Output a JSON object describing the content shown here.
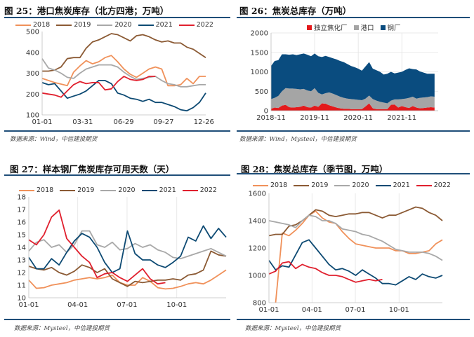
{
  "panels": [
    {
      "title": "图 25：港口焦炭库存（北方四港；万吨）",
      "source": "数据来源：Wind，中信建投期货"
    },
    {
      "title": "图 26：焦炭总库存（万吨）",
      "source": "数据来源：Wind，Mysteel，中信建投期货"
    },
    {
      "title": "图 27：样本钢厂焦炭库存可用天数（天）",
      "source": "数据来源：Mysteel，中信建投期货"
    },
    {
      "title": "图 28：焦炭总库存（季节图，万吨）",
      "source": "数据来源：Mysteel，中信建投期货"
    }
  ],
  "colors": {
    "2018": "#f0915a",
    "2019": "#8b5a34",
    "2020": "#a8a8a8",
    "2021": "#0d4a73",
    "2022": "#e0202e",
    "coking": "#e31a1c",
    "port": "#a5a5a5",
    "steel": "#0a4c7f",
    "rule": "#1f4e79"
  },
  "chart_data": [
    {
      "type": "line",
      "title": "图 25：港口焦炭库存（北方四港；万吨）",
      "xlabel": "",
      "ylabel": "万吨",
      "x": [
        0,
        2,
        4,
        6,
        8,
        10,
        12,
        14,
        16,
        18,
        20,
        22,
        24,
        26,
        28,
        30,
        32,
        34,
        36,
        38,
        40,
        42,
        44,
        46,
        48,
        50,
        52
      ],
      "xlim": [
        0,
        52
      ],
      "ylim": [
        100,
        500
      ],
      "yticks": [
        100,
        200,
        300,
        400,
        500
      ],
      "xticks": [
        {
          "label": "01-01",
          "x": 0
        },
        {
          "label": "03-31",
          "x": 12.9
        },
        {
          "label": "06-29",
          "x": 25.9
        },
        {
          "label": "09-27",
          "x": 38.6
        },
        {
          "label": "12-26",
          "x": 51.4
        }
      ],
      "legend": "top",
      "series": [
        {
          "name": "2018",
          "values": [
            275,
            265,
            255,
            248,
            240,
            305,
            335,
            360,
            345,
            355,
            375,
            385,
            355,
            320,
            295,
            280,
            300,
            320,
            330,
            320,
            240,
            240,
            245,
            275,
            250,
            285,
            285
          ]
        },
        {
          "name": "2019",
          "values": [
            310,
            310,
            315,
            330,
            370,
            375,
            375,
            420,
            450,
            460,
            475,
            490,
            485,
            470,
            455,
            480,
            485,
            475,
            460,
            450,
            455,
            445,
            445,
            425,
            415,
            395,
            375
          ]
        },
        {
          "name": "2020",
          "values": [
            370,
            325,
            315,
            300,
            280,
            275,
            300,
            320,
            330,
            340,
            340,
            340,
            330,
            305,
            285,
            270,
            275,
            280,
            285,
            265,
            250,
            245,
            235,
            235,
            240,
            245,
            245
          ]
        },
        {
          "name": "2021",
          "values": [
            255,
            245,
            250,
            215,
            180,
            190,
            200,
            215,
            240,
            265,
            265,
            250,
            205,
            195,
            180,
            175,
            165,
            175,
            160,
            160,
            150,
            140,
            125,
            120,
            135,
            160,
            205
          ]
        },
        {
          "name": "2022",
          "values": [
            205,
            200,
            195,
            185,
            215,
            245,
            260,
            250,
            255,
            255,
            220,
            225,
            260,
            285,
            270,
            265,
            270,
            285,
            285,
            null,
            null,
            null,
            null,
            null,
            null,
            null,
            null
          ]
        }
      ]
    },
    {
      "type": "area",
      "stacked": true,
      "title": "图 26：焦炭总库存（万吨）",
      "xlabel": "",
      "ylabel": "万吨",
      "xlim": [
        0,
        46
      ],
      "ylim": [
        0,
        2000
      ],
      "yticks": [
        0,
        500,
        1000,
        1500,
        2000
      ],
      "xticks": [
        {
          "label": "2018-11",
          "x": 0
        },
        {
          "label": "2019-11",
          "x": 12
        },
        {
          "label": "2020-11",
          "x": 24
        },
        {
          "label": "2021-11",
          "x": 36
        }
      ],
      "legend": "top",
      "series": [
        {
          "name": "独立焦化厂",
          "key": "coking",
          "values": [
            50,
            80,
            70,
            130,
            150,
            90,
            80,
            90,
            100,
            130,
            90,
            80,
            130,
            100,
            190,
            180,
            140,
            110,
            80,
            60,
            50,
            50,
            40,
            40,
            40,
            40,
            110,
            190,
            60,
            40,
            40,
            40,
            40,
            150,
            160,
            80,
            120,
            90,
            70,
            120,
            80,
            60,
            70,
            80,
            90,
            80
          ]
        },
        {
          "name": "港口",
          "key": "port",
          "values": [
            250,
            250,
            310,
            370,
            430,
            480,
            490,
            470,
            450,
            430,
            430,
            420,
            450,
            360,
            230,
            270,
            330,
            330,
            320,
            300,
            280,
            260,
            260,
            250,
            240,
            230,
            200,
            200,
            240,
            220,
            190,
            170,
            150,
            110,
            130,
            210,
            180,
            220,
            260,
            240,
            230,
            270,
            270,
            270,
            280,
            280
          ]
        },
        {
          "name": "钢厂",
          "key": "steel",
          "values": [
            850,
            950,
            920,
            950,
            870,
            870,
            880,
            870,
            900,
            910,
            920,
            900,
            890,
            940,
            960,
            960,
            910,
            910,
            920,
            920,
            920,
            890,
            850,
            830,
            800,
            760,
            830,
            860,
            780,
            780,
            770,
            720,
            760,
            740,
            670,
            690,
            700,
            740,
            760,
            710,
            750,
            680,
            640,
            600,
            580,
            590
          ]
        }
      ]
    },
    {
      "type": "line",
      "title": "图 27：样本钢厂焦炭库存可用天数（天）",
      "xlabel": "",
      "ylabel": "天",
      "x": [
        0,
        2,
        4,
        6,
        8,
        10,
        12,
        14,
        16,
        18,
        20,
        22,
        24,
        26,
        28,
        30,
        32,
        34,
        36,
        38,
        40,
        42,
        44,
        46,
        48,
        50,
        52
      ],
      "xlim": [
        0,
        52
      ],
      "ylim": [
        10,
        18
      ],
      "yticks": [
        10,
        11,
        12,
        13,
        14,
        15,
        16,
        17,
        18
      ],
      "xticks": [
        {
          "label": "01-01",
          "x": 0
        },
        {
          "label": "04-01",
          "x": 12.9
        },
        {
          "label": "07-01",
          "x": 25.9
        },
        {
          "label": "10-01",
          "x": 39
        }
      ],
      "legend": "top",
      "series": [
        {
          "name": "2018",
          "values": [
            11.4,
            10.75,
            10.8,
            11.0,
            11.1,
            11.2,
            11.4,
            11.5,
            11.6,
            11.5,
            11.6,
            11.8,
            11.2,
            11.0,
            11.0,
            11.6,
            11.3,
            10.8,
            10.7,
            10.75,
            10.9,
            11.1,
            11.2,
            11.1,
            11.4,
            11.8,
            12.2
          ]
        },
        {
          "name": "2019",
          "values": [
            12.5,
            12.3,
            12.2,
            12.4,
            12.0,
            11.8,
            12.1,
            12.6,
            12.4,
            12.0,
            12.3,
            11.5,
            11.2,
            10.9,
            11.3,
            11.2,
            11.3,
            11.4,
            11.4,
            11.5,
            11.4,
            11.8,
            11.9,
            12.2,
            13.7,
            13.4,
            13.3
          ]
        },
        {
          "name": "2020",
          "values": [
            13.7,
            14.4,
            14.6,
            14.0,
            14.2,
            13.6,
            14.2,
            15.3,
            15.3,
            14.2,
            14.0,
            14.4,
            13.8,
            13.9,
            14.3,
            14.0,
            14.2,
            13.8,
            13.6,
            13.2,
            13.1,
            13.3,
            13.5,
            13.7,
            13.9,
            13.6,
            13.3
          ]
        },
        {
          "name": "2021",
          "values": [
            13.2,
            12.3,
            12.3,
            13.1,
            12.6,
            13.6,
            14.5,
            15.1,
            14.8,
            14.0,
            12.8,
            12.0,
            12.3,
            15.3,
            13.5,
            13.0,
            13.0,
            12.6,
            12.4,
            12.8,
            13.3,
            14.8,
            14.5,
            15.7,
            14.7,
            15.5,
            14.8
          ]
        },
        {
          "name": "2022",
          "values": [
            14.6,
            14.2,
            15.0,
            16.4,
            16.95,
            14.7,
            14.0,
            13.3,
            12.8,
            11.6,
            11.9,
            12.0,
            11.6,
            11.3,
            11.8,
            12.3,
            11.5,
            11.1,
            11.2,
            null,
            null,
            null,
            null,
            null,
            null,
            null,
            null
          ]
        }
      ]
    },
    {
      "type": "line",
      "title": "图 28：焦炭总库存（季节图，万吨）",
      "xlabel": "",
      "ylabel": "万吨",
      "x": [
        0,
        2,
        4,
        6,
        8,
        10,
        12,
        14,
        16,
        18,
        20,
        22,
        24,
        26,
        28,
        30,
        32,
        34,
        36,
        38,
        40,
        42,
        44,
        46,
        48,
        50,
        52
      ],
      "xlim": [
        0,
        52
      ],
      "ylim": [
        800,
        1600
      ],
      "yticks": [
        800,
        1000,
        1200,
        1400,
        1600
      ],
      "xticks": [
        {
          "label": "01-01",
          "x": 0
        },
        {
          "label": "04-01",
          "x": 12.9
        },
        {
          "label": "07-01",
          "x": 25.9
        },
        {
          "label": "10-01",
          "x": 39
        }
      ],
      "legend": "top",
      "series": [
        {
          "name": "2018",
          "values": [
            null,
            800,
            1310,
            1290,
            1330,
            1380,
            1440,
            1470,
            1420,
            1390,
            1380,
            1320,
            1270,
            1230,
            1220,
            1210,
            1200,
            1200,
            1200,
            1180,
            1180,
            1160,
            1160,
            1170,
            1180,
            1230,
            1260
          ]
        },
        {
          "name": "2019",
          "values": [
            1290,
            1300,
            1300,
            1360,
            1370,
            1400,
            1440,
            1480,
            1470,
            1440,
            1430,
            1440,
            1450,
            1450,
            1460,
            1460,
            1440,
            1420,
            1440,
            1440,
            1460,
            1480,
            1500,
            1490,
            1460,
            1440,
            1400
          ]
        },
        {
          "name": "2020",
          "values": [
            1400,
            1390,
            1380,
            1370,
            1350,
            1400,
            1440,
            1430,
            1400,
            1400,
            1380,
            1340,
            1330,
            1320,
            1300,
            1290,
            1270,
            1250,
            1220,
            1190,
            1180,
            1170,
            1170,
            1170,
            1160,
            1140,
            1110
          ]
        },
        {
          "name": "2021",
          "values": [
            1110,
            1040,
            1070,
            1060,
            1150,
            1240,
            1260,
            1200,
            1140,
            1080,
            1040,
            1050,
            1030,
            1000,
            1040,
            1010,
            980,
            940,
            940,
            930,
            960,
            990,
            970,
            1010,
            990,
            980,
            1000
          ]
        },
        {
          "name": "2022",
          "values": [
            1010,
            1030,
            1090,
            1100,
            1050,
            1080,
            1060,
            1050,
            1020,
            1000,
            1000,
            990,
            970,
            950,
            960,
            970,
            960,
            970,
            null,
            null,
            null,
            null,
            null,
            null,
            null,
            null,
            null
          ]
        }
      ]
    }
  ]
}
